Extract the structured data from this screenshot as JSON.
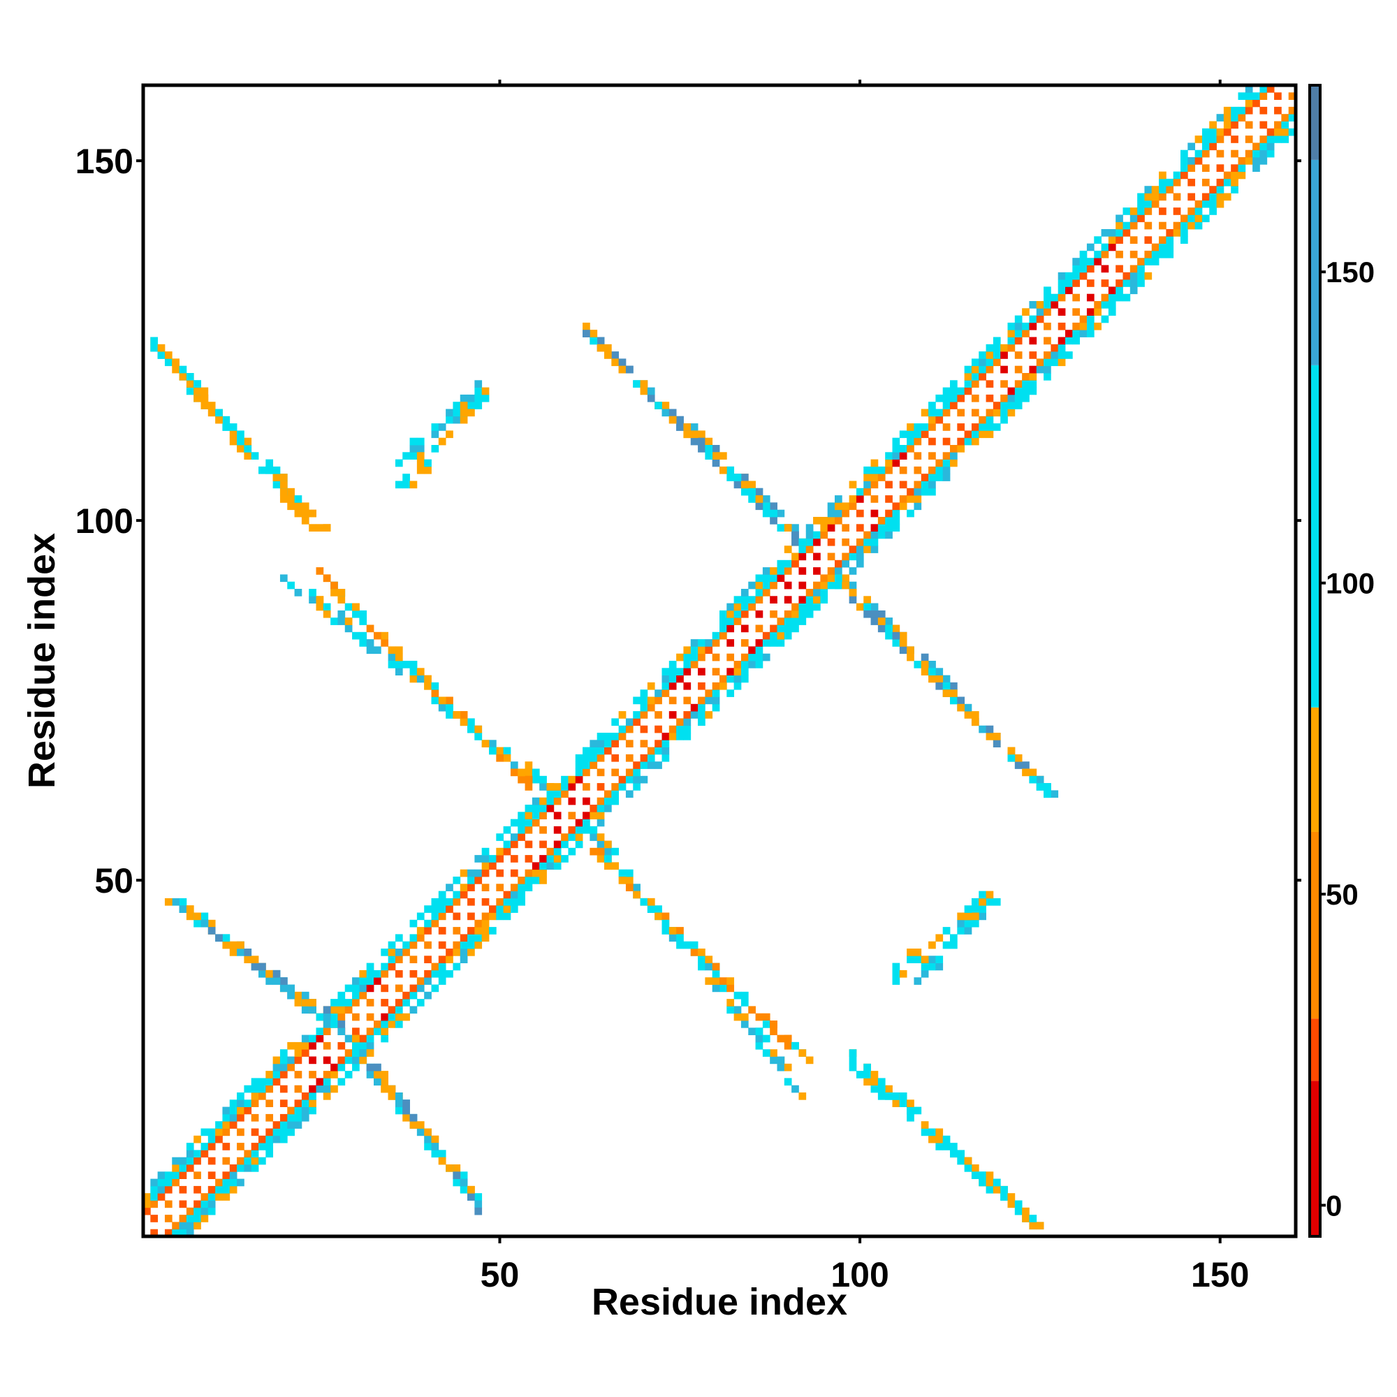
{
  "chart_data": {
    "type": "heatmap",
    "title": "",
    "xlabel": "Residue index",
    "ylabel": "Residue index",
    "xlim": [
      1,
      160
    ],
    "ylim": [
      1,
      160
    ],
    "xticks": [
      50,
      100,
      150
    ],
    "yticks": [
      50,
      100,
      150
    ],
    "colorbar": {
      "ticks": [
        0,
        50,
        100,
        150
      ],
      "range": [
        -5,
        180
      ],
      "bands": [
        {
          "from": -5,
          "to": 20,
          "color": "#e00000"
        },
        {
          "from": 20,
          "to": 30,
          "color": "#ff4a00"
        },
        {
          "from": 30,
          "to": 60,
          "color": "#ff8a00"
        },
        {
          "from": 60,
          "to": 80,
          "color": "#ffa600"
        },
        {
          "from": 80,
          "to": 135,
          "color": "#00e0f0"
        },
        {
          "from": 135,
          "to": 168,
          "color": "#3aa6d6"
        },
        {
          "from": 168,
          "to": 180,
          "color": "#4f7ea8"
        }
      ]
    },
    "palette": {
      "red": "#e00000",
      "orange_red": "#ff5500",
      "orange": "#ff8800",
      "amber": "#ffa500",
      "cyan": "#00e0f0",
      "sky": "#2ab8dc",
      "steel": "#4b8fc0"
    },
    "diagonal": {
      "half_width": 6,
      "profile": [
        "white",
        "orange",
        "white",
        "orange",
        "cyan",
        "cyan",
        "cyan"
      ],
      "red_regions": [
        [
          24,
          34
        ],
        [
          55,
          62
        ],
        [
          73,
          96
        ],
        [
          100,
          108
        ],
        [
          120,
          135
        ]
      ]
    },
    "contact_segments": [
      {
        "i0": 2,
        "j0": 124,
        "i1": 24,
        "j1": 99,
        "colors": [
          "amber",
          "cyan"
        ]
      },
      {
        "i0": 20,
        "j0": 92,
        "i1": 56,
        "j1": 63,
        "colors": [
          "sky",
          "amber",
          "cyan"
        ]
      },
      {
        "i0": 36,
        "j0": 108,
        "i1": 47,
        "j1": 118,
        "colors": [
          "cyan",
          "sky"
        ]
      },
      {
        "i0": 62,
        "j0": 126,
        "i1": 92,
        "j1": 97,
        "colors": [
          "steel",
          "amber",
          "sky"
        ]
      },
      {
        "i0": 6,
        "j0": 46,
        "i1": 26,
        "j1": 30,
        "colors": [
          "amber",
          "sky",
          "cyan"
        ]
      },
      {
        "i0": 29,
        "j0": 28,
        "i1": 47,
        "j1": 4,
        "colors": [
          "sky",
          "amber",
          "steel"
        ]
      },
      {
        "i0": 63,
        "j0": 54,
        "i1": 92,
        "j1": 25,
        "colors": [
          "amber",
          "cyan",
          "orange"
        ]
      },
      {
        "i0": 98,
        "j0": 26,
        "i1": 124,
        "j1": 2,
        "colors": [
          "cyan",
          "amber"
        ]
      },
      {
        "i0": 104,
        "j0": 36,
        "i1": 118,
        "j1": 48,
        "colors": [
          "cyan",
          "amber"
        ]
      },
      {
        "i0": 97,
        "j0": 91,
        "i1": 126,
        "j1": 62,
        "colors": [
          "amber",
          "steel",
          "cyan"
        ]
      }
    ]
  }
}
